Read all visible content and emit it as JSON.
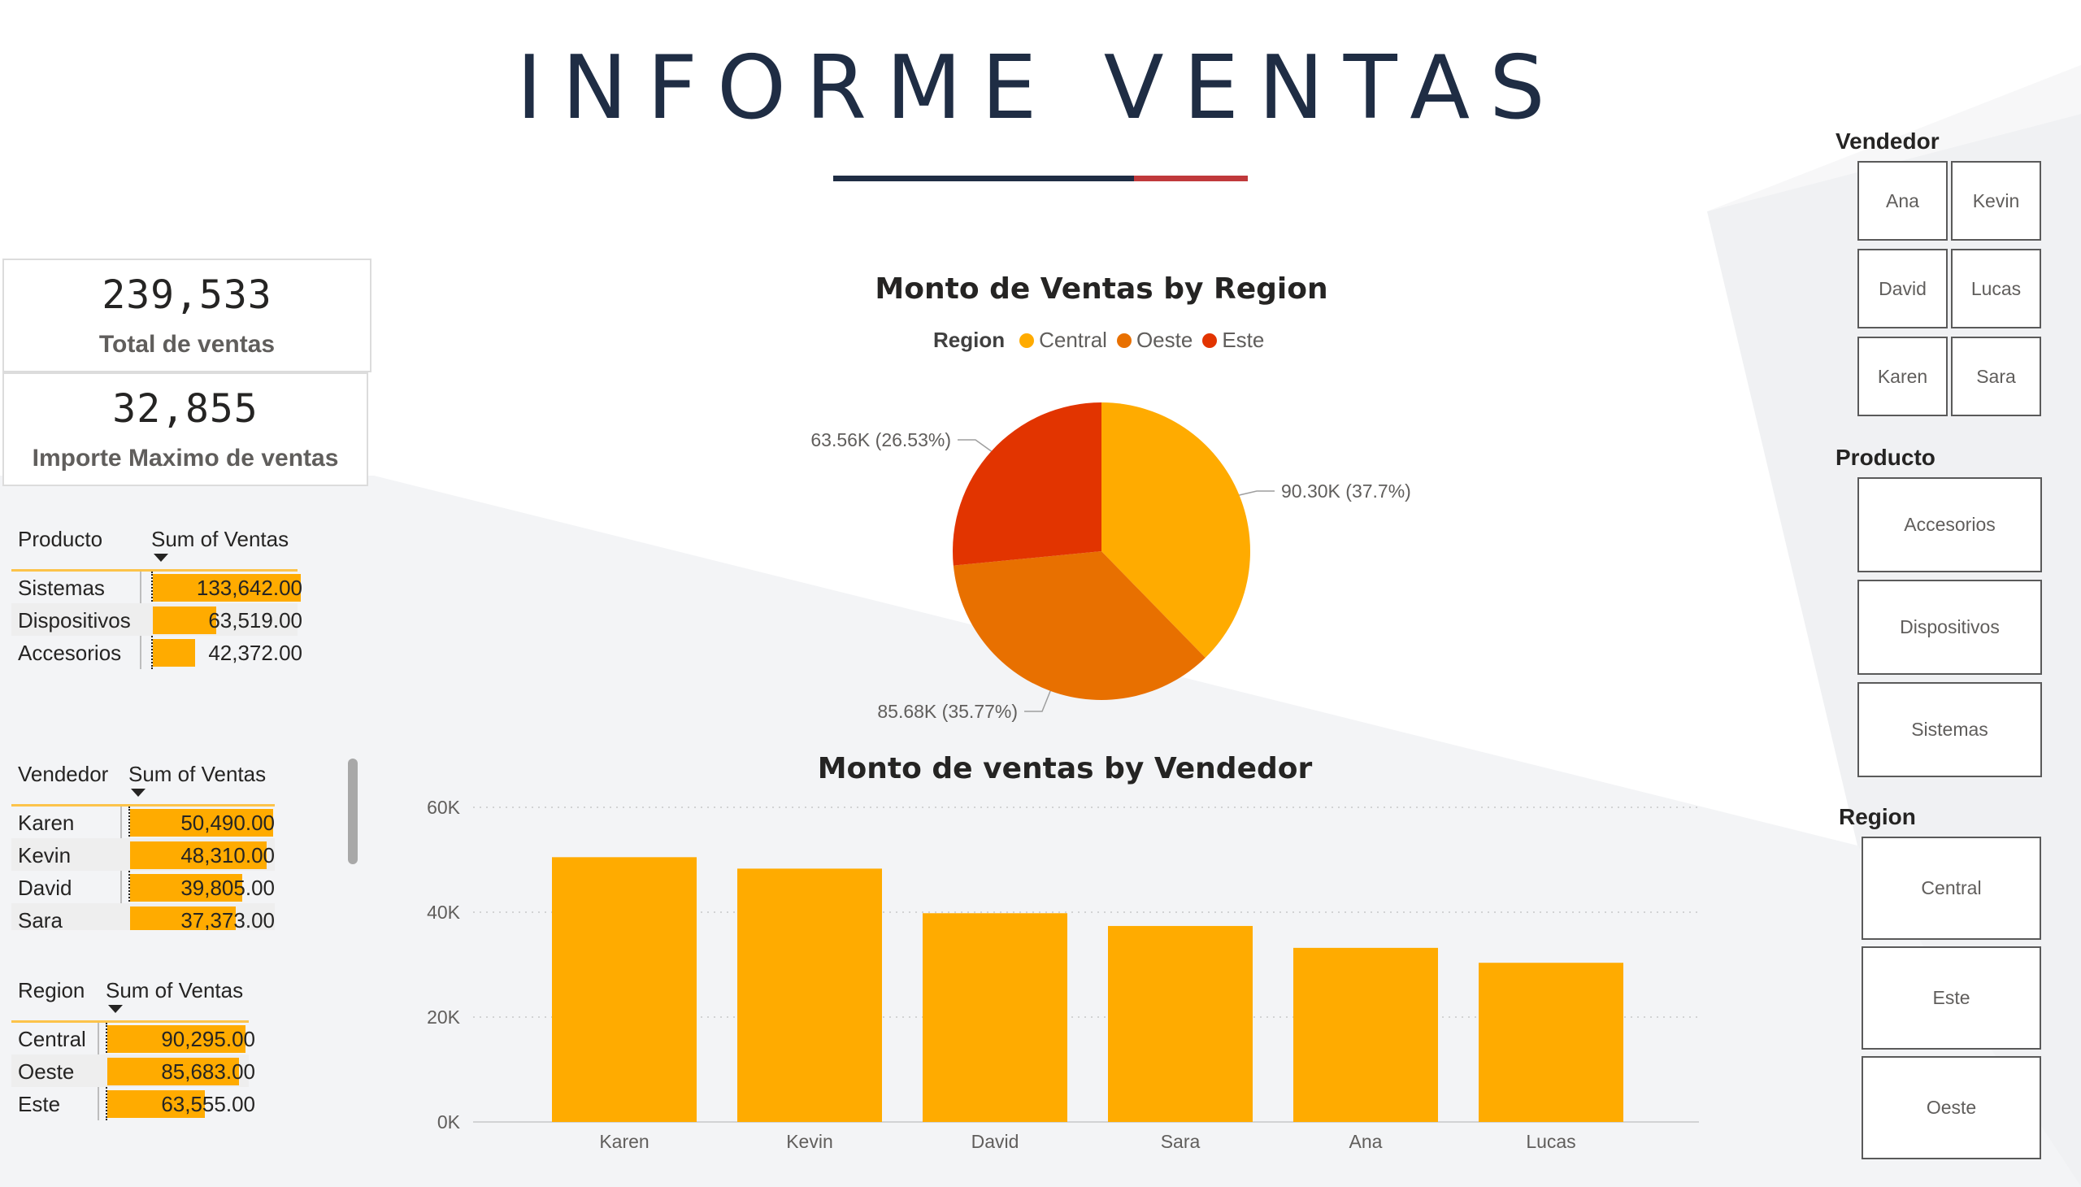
{
  "title": "INFORME VENTAS",
  "colors": {
    "title": "#1f2d44",
    "accent_red": "#c0393b",
    "central": "#ffab00",
    "oeste": "#e87000",
    "este": "#e23400",
    "bar": "#ffab00"
  },
  "cards": {
    "total": {
      "value": "239,533",
      "label": "Total de ventas"
    },
    "max": {
      "value": "32,855",
      "label": "Importe Maximo de ventas"
    }
  },
  "tables": {
    "producto": {
      "headers": [
        "Producto",
        "Sum of Ventas"
      ],
      "rows": [
        {
          "label": "Sistemas",
          "value": "133,642.00",
          "amount": 133642
        },
        {
          "label": "Dispositivos",
          "value": "63,519.00",
          "amount": 63519
        },
        {
          "label": "Accesorios",
          "value": "42,372.00",
          "amount": 42372
        }
      ]
    },
    "vendedor": {
      "headers": [
        "Vendedor",
        "Sum of Ventas"
      ],
      "rows": [
        {
          "label": "Karen",
          "value": "50,490.00",
          "amount": 50490
        },
        {
          "label": "Kevin",
          "value": "48,310.00",
          "amount": 48310
        },
        {
          "label": "David",
          "value": "39,805.00",
          "amount": 39805
        },
        {
          "label": "Sara",
          "value": "37,373.00",
          "amount": 37373
        }
      ]
    },
    "region": {
      "headers": [
        "Region",
        "Sum of Ventas"
      ],
      "rows": [
        {
          "label": "Central",
          "value": "90,295.00",
          "amount": 90295
        },
        {
          "label": "Oeste",
          "value": "85,683.00",
          "amount": 85683
        },
        {
          "label": "Este",
          "value": "63,555.00",
          "amount": 63555
        }
      ]
    }
  },
  "slicers": {
    "vendedor": {
      "title": "Vendedor",
      "items": [
        "Ana",
        "Kevin",
        "David",
        "Lucas",
        "Karen",
        "Sara"
      ]
    },
    "producto": {
      "title": "Producto",
      "items": [
        "Accesorios",
        "Dispositivos",
        "Sistemas"
      ]
    },
    "region": {
      "title": "Region",
      "items": [
        "Central",
        "Este",
        "Oeste"
      ]
    }
  },
  "chart_data": [
    {
      "type": "pie",
      "title": "Monto de Ventas by Region",
      "legend_title": "Region",
      "legend_position": "top",
      "slices": [
        {
          "name": "Central",
          "value": 90.3,
          "label": "90.30K (37.7%)",
          "color": "#ffab00"
        },
        {
          "name": "Oeste",
          "value": 85.68,
          "label": "85.68K (35.77%)",
          "color": "#e87000"
        },
        {
          "name": "Este",
          "value": 63.56,
          "label": "63.56K (26.53%)",
          "color": "#e23400"
        }
      ]
    },
    {
      "type": "bar",
      "title": "Monto de ventas by Vendedor",
      "categories": [
        "Karen",
        "Kevin",
        "David",
        "Sara",
        "Ana",
        "Lucas"
      ],
      "values": [
        50490,
        48310,
        39805,
        37373,
        33200,
        30355
      ],
      "ylim": [
        0,
        60000
      ],
      "yticks": [
        0,
        20000,
        40000,
        60000
      ],
      "ytick_labels": [
        "0K",
        "20K",
        "40K",
        "60K"
      ],
      "grid": true
    }
  ]
}
